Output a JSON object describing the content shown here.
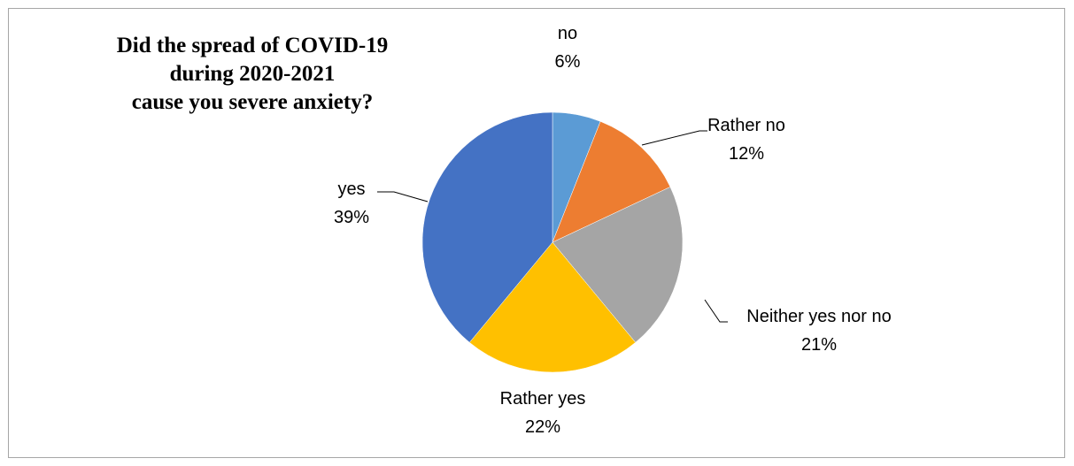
{
  "chart_data": {
    "type": "pie",
    "title_lines": [
      "Did the spread of COVID-19",
      "during 2020-2021",
      "cause you severe anxiety?"
    ],
    "start_angle_deg": 0,
    "direction": "clockwise",
    "slices": [
      {
        "label": "no",
        "percent_label": "6%",
        "value": 6,
        "color": "#5b9bd5"
      },
      {
        "label": "Rather no",
        "percent_label": "12%",
        "value": 12,
        "color": "#ed7d31"
      },
      {
        "label": "Neither yes nor no",
        "percent_label": "21%",
        "value": 21,
        "color": "#a5a5a5"
      },
      {
        "label": "Rather yes",
        "percent_label": "22%",
        "value": 22,
        "color": "#ffc000"
      },
      {
        "label": "yes",
        "percent_label": "39%",
        "value": 39,
        "color": "#4472c4"
      }
    ],
    "legend": "none"
  }
}
